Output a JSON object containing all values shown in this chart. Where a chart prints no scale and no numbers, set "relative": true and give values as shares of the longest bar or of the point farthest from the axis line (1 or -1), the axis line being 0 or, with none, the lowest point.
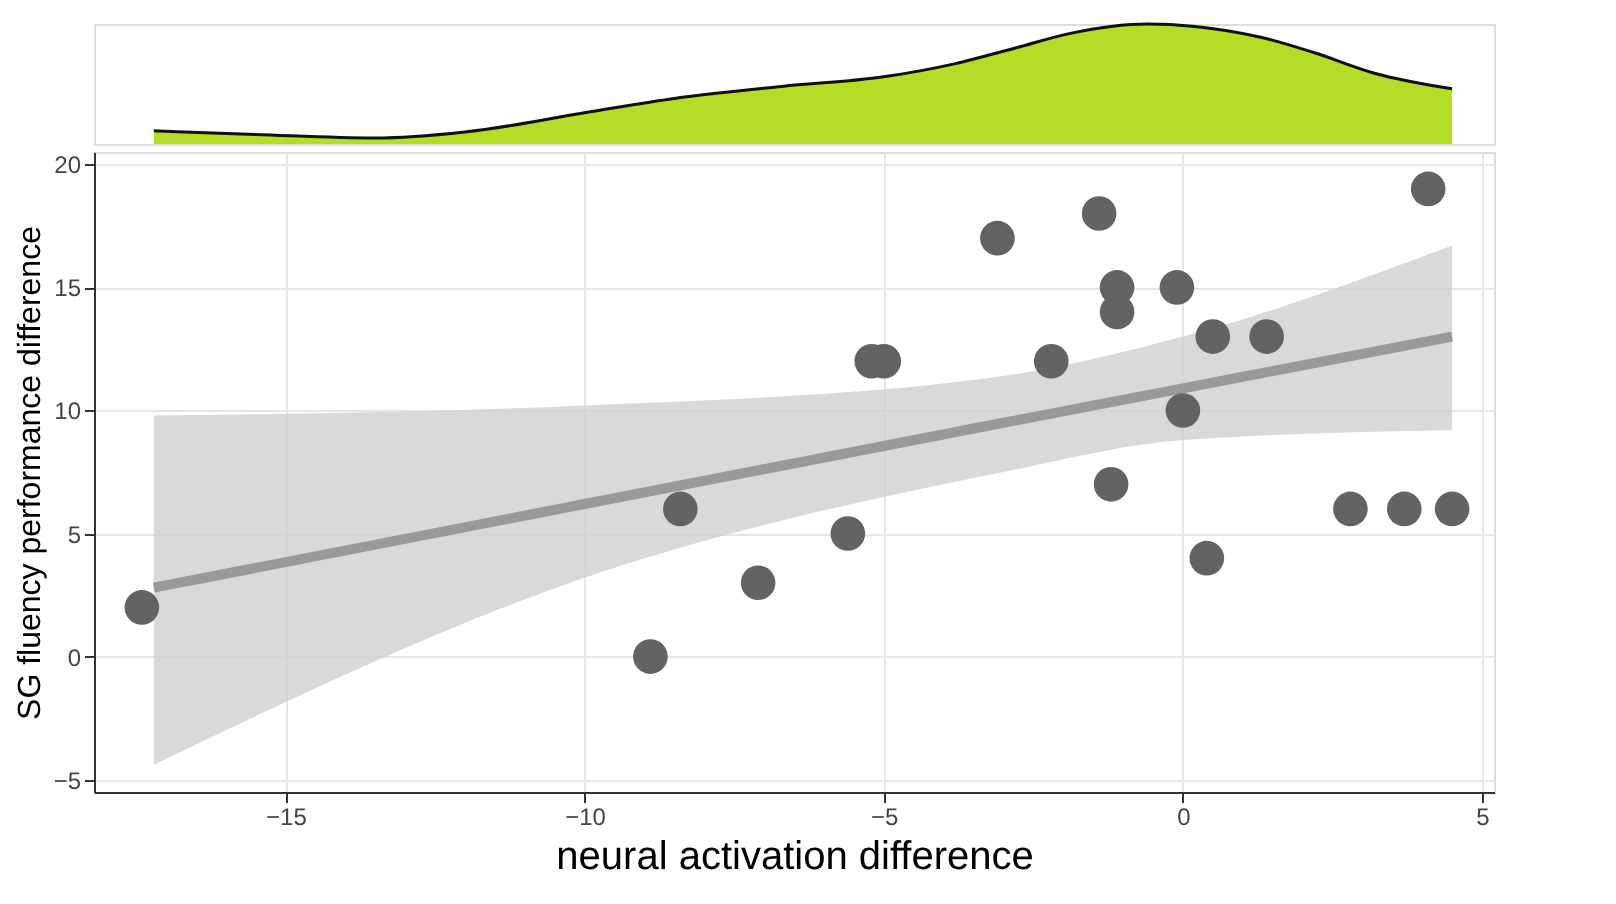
{
  "chart_data": [
    {
      "type": "area",
      "relative": true,
      "xlim": [
        -18.2,
        5.2
      ],
      "grid": false,
      "series": [
        {
          "color": "#b5dc26",
          "x": [
            -17.2,
            -15.5,
            -13.5,
            -12,
            -10,
            -8.5,
            -6.7,
            -5,
            -3.8,
            -2.8,
            -1.9,
            -1.2,
            -0.6,
            0.2,
            1.3,
            2.2,
            3.2,
            4.5
          ],
          "values": [
            0.11,
            0.08,
            0.05,
            0.1,
            0.26,
            0.38,
            0.48,
            0.56,
            0.67,
            0.8,
            0.92,
            0.98,
            1,
            0.98,
            0.89,
            0.76,
            0.59,
            0.46
          ]
        }
      ]
    },
    {
      "type": "scatter",
      "xlabel": "neural activation difference",
      "ylabel": "SG fluency performance difference",
      "xlim": [
        -18.2,
        5.2
      ],
      "ylim": [
        -5.5,
        20.5
      ],
      "xticks": [
        -15,
        -10,
        -5,
        0,
        5
      ],
      "yticks": [
        -5,
        0,
        5,
        10,
        15,
        20
      ],
      "grid": true,
      "series": [
        {
          "color": "#636363",
          "marker": "circle",
          "x": [
            -17.4,
            -8.9,
            -8.4,
            -7.1,
            -5.6,
            -5.2,
            -5.0,
            -3.1,
            -2.2,
            -1.4,
            -1.2,
            -1.1,
            -1.1,
            -0.1,
            0.0,
            0.4,
            0.5,
            1.4,
            2.8,
            3.7,
            4.1,
            4.5
          ],
          "values": [
            2,
            0,
            6,
            3,
            5,
            12,
            12,
            17,
            12,
            18,
            7,
            15,
            14,
            15,
            10,
            4,
            13,
            13,
            6,
            6,
            19,
            6
          ]
        },
        {
          "type": "line",
          "color": "#999999",
          "x": [
            -17.2,
            -10,
            -3,
            0,
            4.5
          ],
          "values": [
            2.8,
            6.2,
            9.5,
            10.9,
            13.0
          ],
          "lower": [
            -4.4,
            3.2,
            7.5,
            8.8,
            9.2
          ],
          "upper": [
            9.8,
            10.2,
            11.4,
            13.0,
            16.7
          ]
        }
      ]
    }
  ]
}
